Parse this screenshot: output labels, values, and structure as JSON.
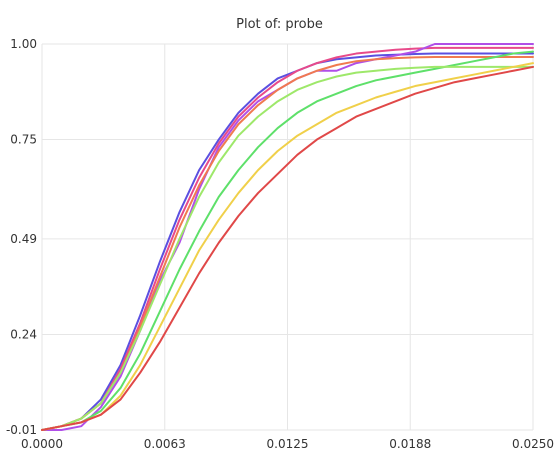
{
  "chart_data": {
    "type": "line",
    "title": "Plot of: probe",
    "xlabel": "",
    "ylabel": "",
    "xlim": [
      0,
      0.025
    ],
    "ylim": [
      -0.01,
      1.0
    ],
    "x_ticks": [
      "0.0000",
      "0.0063",
      "0.0125",
      "0.0188",
      "0.0250"
    ],
    "x_tick_values": [
      0,
      0.00625,
      0.0125,
      0.01875,
      0.025
    ],
    "y_ticks": [
      "-0.01",
      "0.24",
      "0.49",
      "0.75",
      "1.00"
    ],
    "y_tick_values": [
      -0.01,
      0.24,
      0.49,
      0.75,
      1.0
    ],
    "grid": true,
    "legend": "none",
    "x": [
      0,
      0.001,
      0.002,
      0.003,
      0.004,
      0.005,
      0.006,
      0.007,
      0.008,
      0.009,
      0.01,
      0.011,
      0.012,
      0.013,
      0.014,
      0.015,
      0.016,
      0.017,
      0.018,
      0.019,
      0.02,
      0.021,
      0.022,
      0.023,
      0.024,
      0.025
    ],
    "series": [
      {
        "color": "#5b4fe0",
        "values": [
          -0.01,
          0.0,
          0.02,
          0.07,
          0.16,
          0.29,
          0.43,
          0.56,
          0.67,
          0.75,
          0.82,
          0.87,
          0.91,
          0.93,
          0.95,
          0.96,
          0.965,
          0.97,
          0.972,
          0.974,
          0.975,
          0.975,
          0.975,
          0.975,
          0.975,
          0.975
        ]
      },
      {
        "color": "#e84a8a",
        "values": [
          -0.01,
          0.0,
          0.02,
          0.06,
          0.15,
          0.27,
          0.41,
          0.54,
          0.65,
          0.74,
          0.81,
          0.86,
          0.9,
          0.93,
          0.95,
          0.965,
          0.975,
          0.98,
          0.985,
          0.988,
          0.99,
          0.99,
          0.99,
          0.99,
          0.99,
          0.99
        ]
      },
      {
        "color": "#b04fe8",
        "values": [
          -0.01,
          -0.01,
          0.0,
          0.05,
          0.13,
          0.25,
          0.38,
          0.48,
          0.62,
          0.73,
          0.8,
          0.85,
          0.88,
          0.91,
          0.93,
          0.93,
          0.95,
          0.96,
          0.97,
          0.98,
          1.0,
          1.0,
          1.0,
          1.0,
          1.0,
          1.0
        ]
      },
      {
        "color": "#f07a50",
        "values": [
          -0.01,
          0.0,
          0.02,
          0.06,
          0.14,
          0.26,
          0.39,
          0.52,
          0.63,
          0.72,
          0.79,
          0.84,
          0.88,
          0.91,
          0.93,
          0.945,
          0.955,
          0.96,
          0.963,
          0.965,
          0.966,
          0.966,
          0.966,
          0.966,
          0.966,
          0.966
        ]
      },
      {
        "color": "#5ee06a",
        "values": [
          -0.01,
          0.0,
          0.01,
          0.04,
          0.1,
          0.19,
          0.3,
          0.41,
          0.51,
          0.6,
          0.67,
          0.73,
          0.78,
          0.82,
          0.85,
          0.87,
          0.89,
          0.905,
          0.915,
          0.925,
          0.935,
          0.945,
          0.955,
          0.965,
          0.975,
          0.98
        ]
      },
      {
        "color": "#9ee86a",
        "values": [
          -0.01,
          0.0,
          0.02,
          0.06,
          0.14,
          0.25,
          0.37,
          0.49,
          0.6,
          0.69,
          0.76,
          0.81,
          0.85,
          0.88,
          0.9,
          0.915,
          0.925,
          0.93,
          0.935,
          0.938,
          0.94,
          0.94,
          0.94,
          0.94,
          0.94,
          0.94
        ]
      },
      {
        "color": "#f0d04a",
        "values": [
          -0.01,
          0.0,
          0.01,
          0.03,
          0.08,
          0.16,
          0.26,
          0.36,
          0.46,
          0.54,
          0.61,
          0.67,
          0.72,
          0.76,
          0.79,
          0.82,
          0.84,
          0.86,
          0.875,
          0.89,
          0.9,
          0.91,
          0.92,
          0.93,
          0.94,
          0.95
        ]
      },
      {
        "color": "#e04848",
        "values": [
          -0.01,
          0.0,
          0.01,
          0.03,
          0.07,
          0.14,
          0.22,
          0.31,
          0.4,
          0.48,
          0.55,
          0.61,
          0.66,
          0.71,
          0.75,
          0.78,
          0.81,
          0.83,
          0.85,
          0.87,
          0.885,
          0.9,
          0.91,
          0.92,
          0.93,
          0.94
        ]
      }
    ]
  }
}
